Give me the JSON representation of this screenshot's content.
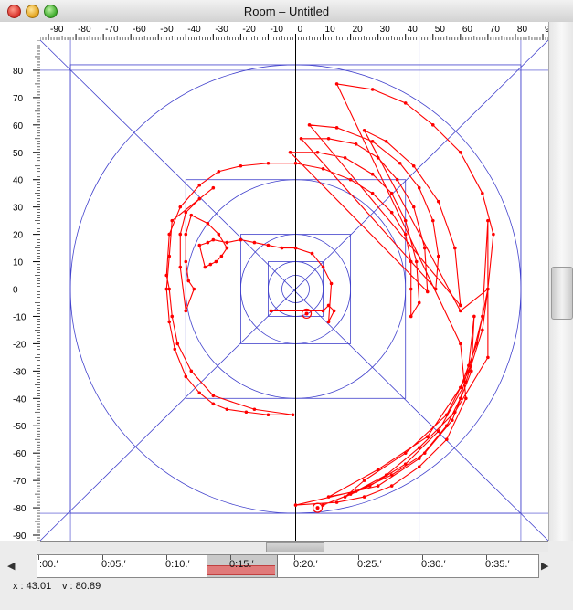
{
  "window": {
    "title": "Room – Untitled"
  },
  "rulers": {
    "x_ticks": [
      "-90",
      "-80",
      "-70",
      "-60",
      "-50",
      "-40",
      "-30",
      "-20",
      "-10",
      "0",
      "10",
      "20",
      "30",
      "40",
      "50",
      "60",
      "70",
      "80",
      "9"
    ],
    "y_ticks": [
      "80",
      "70",
      "60",
      "50",
      "40",
      "30",
      "20",
      "10",
      "0",
      "-10",
      "-20",
      "-30",
      "-40",
      "-50",
      "-60",
      "-70",
      "-80",
      "-90"
    ]
  },
  "room": {
    "x_range": [
      -93,
      92
    ],
    "y_range": [
      91,
      -92
    ],
    "circles_r": [
      5,
      10,
      20,
      40,
      82
    ],
    "squares_half": [
      10,
      20,
      40,
      82
    ],
    "walls": {
      "x": [
        -82,
        82
      ],
      "y": [
        -82,
        80
      ]
    },
    "path_color": "#ff0000",
    "guide_color": "#4040cc",
    "start_marker": [
      4,
      -9
    ],
    "end_marker": [
      8,
      -80
    ],
    "trajectory": [
      [
        -9,
        -8
      ],
      [
        10,
        -8
      ],
      [
        12,
        -6
      ],
      [
        14,
        -8
      ],
      [
        12,
        -12
      ],
      [
        13,
        2
      ],
      [
        10,
        8
      ],
      [
        6,
        13
      ],
      [
        0,
        15
      ],
      [
        -5,
        15
      ],
      [
        -10,
        16
      ],
      [
        -15,
        17
      ],
      [
        -20,
        18
      ],
      [
        -25,
        17
      ],
      [
        -30,
        18
      ],
      [
        -32,
        17
      ],
      [
        -35,
        16
      ],
      [
        -33,
        8
      ],
      [
        -31,
        9
      ],
      [
        -29,
        10
      ],
      [
        -27,
        12
      ],
      [
        -25,
        15
      ],
      [
        -28,
        20
      ],
      [
        -32,
        24
      ],
      [
        -38,
        27
      ],
      [
        -40,
        20
      ],
      [
        -40,
        10
      ],
      [
        -39,
        3
      ],
      [
        -37,
        0
      ],
      [
        -40,
        -8
      ],
      [
        -42,
        8
      ],
      [
        -42,
        20
      ],
      [
        -40,
        28
      ],
      [
        -35,
        33
      ],
      [
        -30,
        37
      ],
      [
        -45,
        25
      ],
      [
        -46,
        12
      ],
      [
        -47,
        0
      ],
      [
        -46,
        -12
      ],
      [
        -44,
        -22
      ],
      [
        -40,
        -32
      ],
      [
        -35,
        -38
      ],
      [
        -30,
        -42
      ],
      [
        -25,
        -44
      ],
      [
        -18,
        -45
      ],
      [
        -10,
        -46
      ],
      [
        -1,
        -46
      ],
      [
        -15,
        -44
      ],
      [
        -30,
        -39
      ],
      [
        -38,
        -30
      ],
      [
        -43,
        -20
      ],
      [
        -45,
        -10
      ],
      [
        -46,
        0
      ],
      [
        -47,
        5
      ],
      [
        -46,
        20
      ],
      [
        -42,
        30
      ],
      [
        -35,
        38
      ],
      [
        -28,
        43
      ],
      [
        -20,
        45
      ],
      [
        -10,
        46
      ],
      [
        0,
        46
      ],
      [
        10,
        44
      ],
      [
        20,
        40
      ],
      [
        28,
        35
      ],
      [
        35,
        28
      ],
      [
        40,
        20
      ],
      [
        42,
        10
      ],
      [
        42,
        0
      ],
      [
        42,
        -10
      ],
      [
        45,
        -5
      ],
      [
        44,
        10
      ],
      [
        40,
        25
      ],
      [
        35,
        35
      ],
      [
        28,
        42
      ],
      [
        18,
        48
      ],
      [
        8,
        50
      ],
      [
        -2,
        50
      ],
      [
        48,
        -1
      ],
      [
        47,
        15
      ],
      [
        43,
        30
      ],
      [
        37,
        40
      ],
      [
        30,
        48
      ],
      [
        22,
        53
      ],
      [
        12,
        55
      ],
      [
        2,
        55
      ],
      [
        51,
        0
      ],
      [
        52,
        12
      ],
      [
        50,
        25
      ],
      [
        45,
        37
      ],
      [
        38,
        46
      ],
      [
        28,
        54
      ],
      [
        15,
        59
      ],
      [
        5,
        60
      ],
      [
        60,
        -6
      ],
      [
        58,
        15
      ],
      [
        52,
        32
      ],
      [
        43,
        45
      ],
      [
        33,
        54
      ],
      [
        25,
        58
      ],
      [
        60,
        -8
      ],
      [
        70,
        0
      ],
      [
        72,
        20
      ],
      [
        68,
        35
      ],
      [
        60,
        50
      ],
      [
        50,
        60
      ],
      [
        40,
        68
      ],
      [
        28,
        73
      ],
      [
        15,
        75
      ],
      [
        60,
        -20
      ],
      [
        62,
        -40
      ],
      [
        55,
        -55
      ],
      [
        45,
        -65
      ],
      [
        35,
        -72
      ],
      [
        25,
        -76
      ],
      [
        15,
        -78
      ],
      [
        0,
        -79
      ],
      [
        30,
        -72
      ],
      [
        45,
        -62
      ],
      [
        55,
        -50
      ],
      [
        60,
        -40
      ],
      [
        63,
        -28
      ],
      [
        65,
        -10
      ],
      [
        64,
        -30
      ],
      [
        57,
        -48
      ],
      [
        47,
        -60
      ],
      [
        35,
        -68
      ],
      [
        22,
        -74
      ],
      [
        12,
        -76
      ],
      [
        30,
        -66
      ],
      [
        48,
        -54
      ],
      [
        60,
        -36
      ],
      [
        66,
        -20
      ],
      [
        70,
        0
      ],
      [
        68,
        -15
      ],
      [
        62,
        -34
      ],
      [
        52,
        -52
      ],
      [
        40,
        -64
      ],
      [
        27,
        -72
      ],
      [
        18,
        -76
      ],
      [
        25,
        -70
      ],
      [
        40,
        -60
      ],
      [
        55,
        -46
      ],
      [
        63,
        -30
      ],
      [
        68,
        -10
      ],
      [
        70,
        25
      ],
      [
        70,
        -25
      ],
      [
        58,
        -45
      ],
      [
        45,
        -58
      ],
      [
        33,
        -68
      ],
      [
        20,
        -75
      ],
      [
        10,
        -79
      ]
    ]
  },
  "timeline": {
    "ticks": [
      ":00.′",
      "0:05.′",
      "0:10.′",
      "0:15.′",
      "0:20.′",
      "0:25.′",
      "0:30.′",
      "0:35.′"
    ],
    "left_arrow": "◀",
    "right_arrow": "▶"
  },
  "status": {
    "x": "x : 43.01",
    "y": "v : 80.89"
  }
}
